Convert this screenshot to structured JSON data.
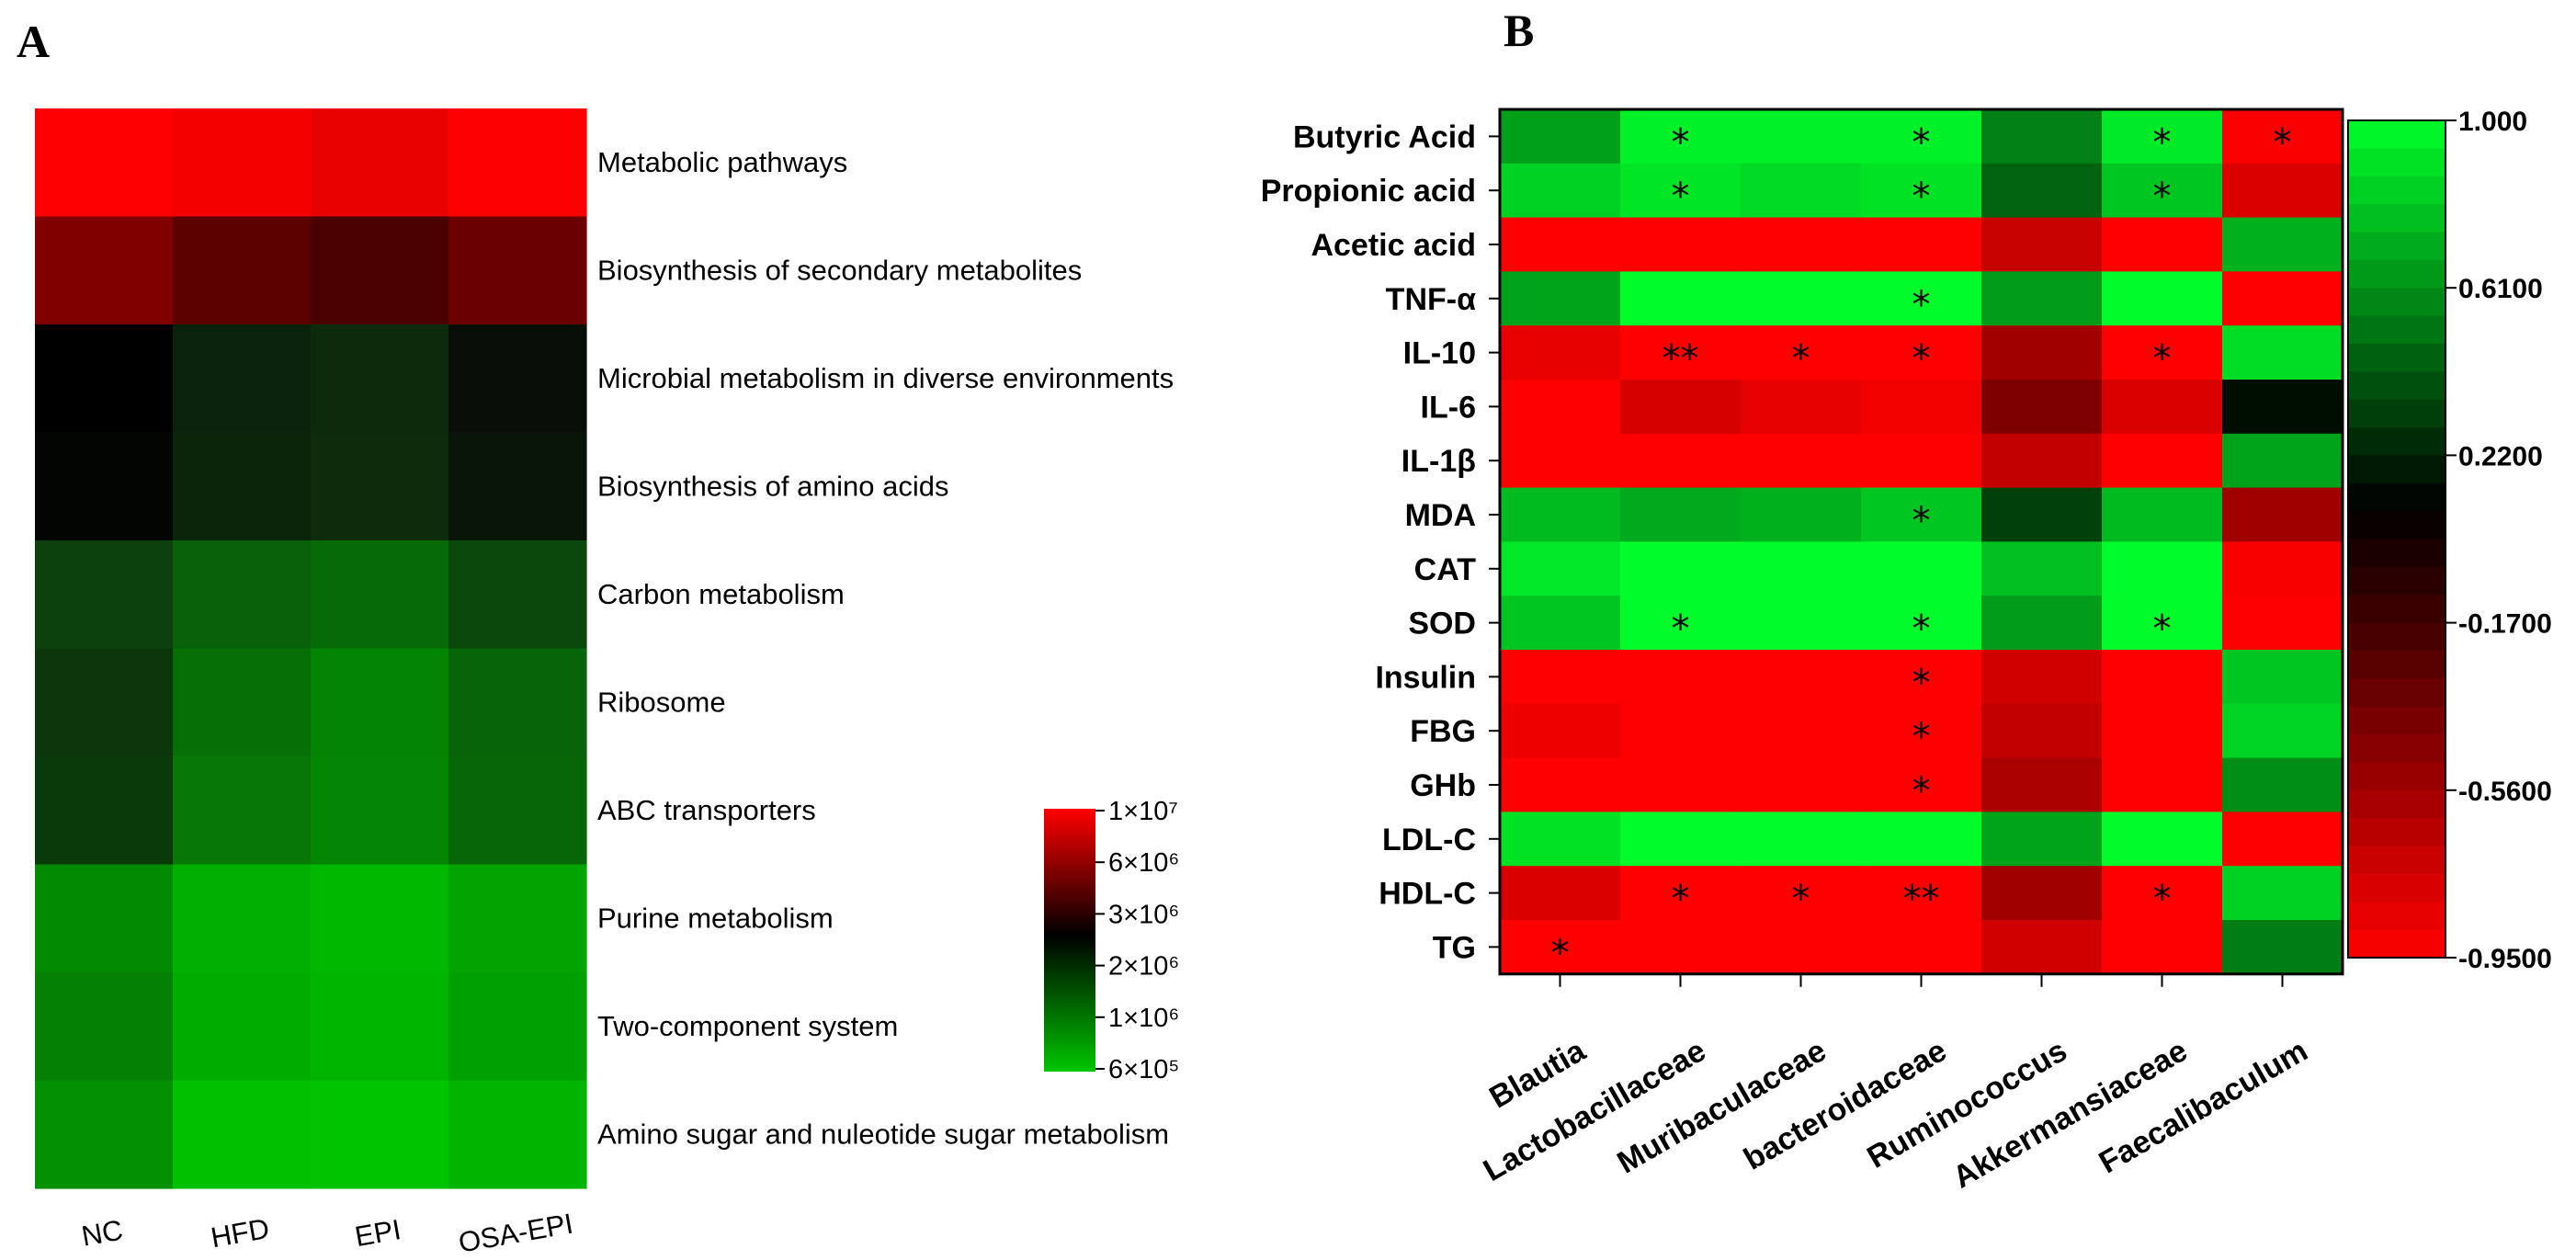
{
  "chart_data": [
    {
      "panel": "A",
      "type": "heatmap",
      "columns": [
        "NC",
        "HFD",
        "EPI",
        "OSA-EPI"
      ],
      "rows": [
        "Metabolic pathways",
        "Biosynthesis of secondary metabolites",
        "Microbial metabolism in diverse environments",
        "Biosynthesis of amino acids",
        "Carbon metabolism",
        "Ribosome",
        "ABC transporters",
        "Purine metabolism",
        "Two-component system",
        "Amino sugar and nuleotide sugar metabolism"
      ],
      "cell_colors": [
        [
          "#ff0000",
          "#f50000",
          "#e80000",
          "#fd0000"
        ],
        [
          "#800000",
          "#5c0000",
          "#4a0000",
          "#6a0000"
        ],
        [
          "#000000",
          "#0a220a",
          "#0c2a0c",
          "#070f07"
        ],
        [
          "#030503",
          "#0a250a",
          "#0c2c0c",
          "#081408"
        ],
        [
          "#0c400c",
          "#086008",
          "#066a06",
          "#0b480b"
        ],
        [
          "#0c360c",
          "#067006",
          "#038403",
          "#086408"
        ],
        [
          "#0a3a0a",
          "#057805",
          "#048604",
          "#076607"
        ],
        [
          "#038a03",
          "#00b000",
          "#00b800",
          "#01a401"
        ],
        [
          "#048004",
          "#00ac00",
          "#00b500",
          "#01a001"
        ],
        [
          "#039003",
          "#00c000",
          "#00c400",
          "#00b400"
        ]
      ],
      "legend": {
        "labels": [
          "1×10⁷",
          "6×10⁶",
          "3×10⁶",
          "2×10⁶",
          "1×10⁶",
          "6×10⁵"
        ],
        "colors": [
          "#ff0000",
          "#8a0000",
          "#000000",
          "#00c600"
        ]
      }
    },
    {
      "panel": "B",
      "type": "heatmap",
      "rows": [
        "Butyric Acid",
        "Propionic acid",
        "Acetic acid",
        "TNF-α",
        "IL-10",
        "IL-6",
        "IL-1β",
        "MDA",
        "CAT",
        "SOD",
        "Insulin",
        "FBG",
        "GHb",
        "LDL-C",
        "HDL-C",
        "TG"
      ],
      "columns": [
        "Blautia",
        "Lactobacillaceae",
        "Muribaculaceae",
        "bacteroidaceae",
        "Ruminococcus",
        "Akkermansiaceae",
        "Faecalibaculum"
      ],
      "values": [
        [
          0.66,
          0.95,
          0.95,
          0.95,
          0.55,
          0.93,
          -0.93
        ],
        [
          0.84,
          0.91,
          0.87,
          0.9,
          0.45,
          0.8,
          -0.8
        ],
        [
          -0.95,
          -0.95,
          -0.95,
          -0.95,
          -0.72,
          -0.95,
          0.72
        ],
        [
          0.68,
          0.99,
          0.99,
          0.99,
          0.65,
          0.99,
          -0.95
        ],
        [
          -0.85,
          -0.95,
          -0.95,
          -0.95,
          -0.56,
          -0.95,
          0.88
        ],
        [
          -0.95,
          -0.78,
          -0.85,
          -0.9,
          -0.42,
          -0.8,
          0.15
        ],
        [
          -0.95,
          -0.95,
          -0.95,
          -0.95,
          -0.7,
          -0.95,
          0.68
        ],
        [
          0.76,
          0.7,
          0.72,
          0.8,
          0.33,
          0.76,
          -0.56
        ],
        [
          0.92,
          0.99,
          0.99,
          0.99,
          0.78,
          0.99,
          -0.92
        ],
        [
          0.8,
          0.99,
          0.99,
          0.99,
          0.65,
          0.99,
          -0.95
        ],
        [
          -0.95,
          -0.95,
          -0.95,
          -0.95,
          -0.76,
          -0.95,
          0.8
        ],
        [
          -0.88,
          -0.95,
          -0.95,
          -0.95,
          -0.7,
          -0.95,
          0.85
        ],
        [
          -0.95,
          -0.95,
          -0.95,
          -0.95,
          -0.6,
          -0.95,
          0.6
        ],
        [
          0.9,
          0.99,
          0.99,
          0.99,
          0.68,
          0.99,
          -0.95
        ],
        [
          -0.8,
          -0.95,
          -0.95,
          -0.95,
          -0.56,
          -0.95,
          0.84
        ],
        [
          -0.95,
          -0.95,
          -0.95,
          -0.95,
          -0.76,
          -0.95,
          0.54
        ]
      ],
      "stars": [
        [
          "",
          "*",
          "",
          "*",
          "",
          "*",
          "*"
        ],
        [
          "",
          "*",
          "",
          "*",
          "",
          "*",
          ""
        ],
        [
          "",
          "",
          "",
          "",
          "",
          "",
          ""
        ],
        [
          "",
          "",
          "",
          "*",
          "",
          "",
          ""
        ],
        [
          "",
          "**",
          "*",
          "*",
          "",
          "*",
          ""
        ],
        [
          "",
          "",
          "",
          "",
          "",
          "",
          ""
        ],
        [
          "",
          "",
          "",
          "",
          "",
          "",
          ""
        ],
        [
          "",
          "",
          "",
          "*",
          "",
          "",
          ""
        ],
        [
          "",
          "",
          "",
          "",
          "",
          "",
          ""
        ],
        [
          "",
          "*",
          "",
          "*",
          "",
          "*",
          ""
        ],
        [
          "",
          "",
          "",
          "*",
          "",
          "",
          ""
        ],
        [
          "",
          "",
          "",
          "*",
          "",
          "",
          ""
        ],
        [
          "",
          "",
          "",
          "*",
          "",
          "",
          ""
        ],
        [
          "",
          "",
          "",
          "",
          "",
          "",
          ""
        ],
        [
          "",
          "*",
          "*",
          "**",
          "",
          "*",
          ""
        ],
        [
          "*",
          "",
          "",
          "",
          "",
          "",
          ""
        ]
      ],
      "legend": {
        "range": [
          -0.95,
          1.0
        ],
        "tick_labels": [
          "1.000",
          "0.6100",
          "0.2200",
          "-0.1700",
          "-0.5600",
          "-0.9500"
        ],
        "colors": {
          "high": "#00ff2a",
          "mid": "#000000",
          "low": "#ff0000"
        }
      }
    }
  ],
  "panels": {
    "a_letter": "A",
    "b_letter": "B"
  }
}
